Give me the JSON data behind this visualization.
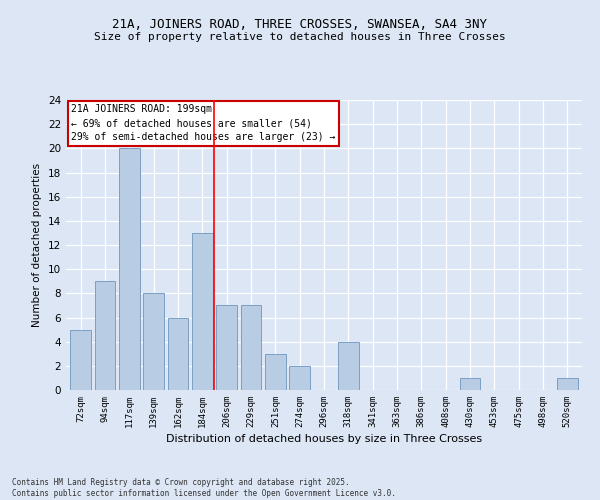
{
  "title_line1": "21A, JOINERS ROAD, THREE CROSSES, SWANSEA, SA4 3NY",
  "title_line2": "Size of property relative to detached houses in Three Crosses",
  "xlabel": "Distribution of detached houses by size in Three Crosses",
  "ylabel": "Number of detached properties",
  "categories": [
    "72sqm",
    "94sqm",
    "117sqm",
    "139sqm",
    "162sqm",
    "184sqm",
    "206sqm",
    "229sqm",
    "251sqm",
    "274sqm",
    "296sqm",
    "318sqm",
    "341sqm",
    "363sqm",
    "386sqm",
    "408sqm",
    "430sqm",
    "453sqm",
    "475sqm",
    "498sqm",
    "520sqm"
  ],
  "values": [
    5,
    9,
    20,
    8,
    6,
    13,
    7,
    7,
    3,
    2,
    0,
    4,
    0,
    0,
    0,
    0,
    1,
    0,
    0,
    0,
    1
  ],
  "bar_color": "#b8cce4",
  "bar_edge_color": "#7aa0c4",
  "background_color": "#dce6f5",
  "grid_color": "#ffffff",
  "vline_x": 5.5,
  "vline_color": "#ff0000",
  "annotation_title": "21A JOINERS ROAD: 199sqm",
  "annotation_line1": "← 69% of detached houses are smaller (54)",
  "annotation_line2": "29% of semi-detached houses are larger (23) →",
  "annotation_box_color": "#ffffff",
  "annotation_box_edge": "#cc0000",
  "footer_line1": "Contains HM Land Registry data © Crown copyright and database right 2025.",
  "footer_line2": "Contains public sector information licensed under the Open Government Licence v3.0.",
  "ylim": [
    0,
    24
  ],
  "yticks": [
    0,
    2,
    4,
    6,
    8,
    10,
    12,
    14,
    16,
    18,
    20,
    22,
    24
  ]
}
